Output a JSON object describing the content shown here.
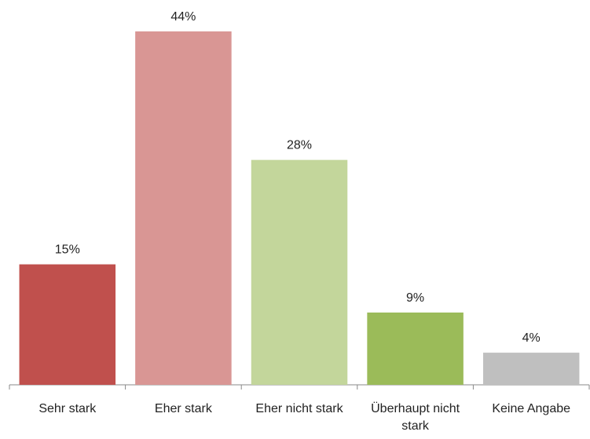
{
  "chart_data": {
    "type": "bar",
    "categories": [
      "Sehr stark",
      "Eher stark",
      "Eher nicht stark",
      "Überhaupt nicht stark",
      "Keine Angabe"
    ],
    "values": [
      15,
      44,
      28,
      9,
      4
    ],
    "value_labels": [
      "15%",
      "44%",
      "28%",
      "9%",
      "4%"
    ],
    "colors": [
      "#c0504d",
      "#d99694",
      "#c3d69b",
      "#9bbb59",
      "#bfbfbf"
    ]
  }
}
